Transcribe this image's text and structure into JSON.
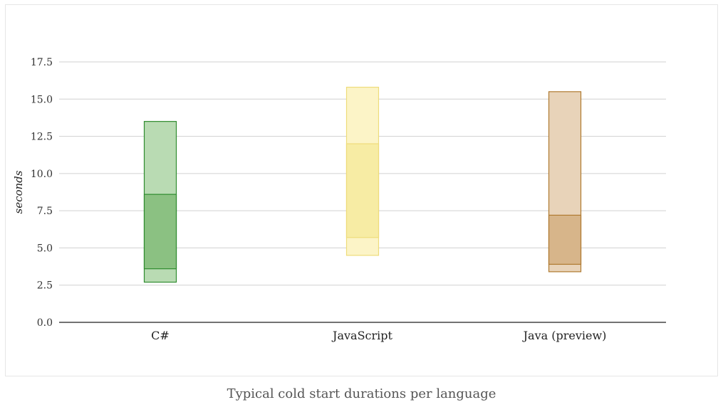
{
  "caption": "Typical cold start durations per language",
  "chart_data": {
    "type": "bar",
    "subtype": "floating-range",
    "title": "",
    "xlabel": "",
    "ylabel": "seconds",
    "ylim": [
      0,
      17.5
    ],
    "yticks": [
      "0.0",
      "2.5",
      "5.0",
      "7.5",
      "10.0",
      "12.5",
      "15.0",
      "17.5"
    ],
    "ytick_values": [
      0,
      2.5,
      5,
      7.5,
      10,
      12.5,
      15,
      17.5
    ],
    "grid": true,
    "categories": [
      "C#",
      "JavaScript",
      "Java (preview)"
    ],
    "series": [
      {
        "values": [
          {
            "min": 2.7,
            "max": 13.5,
            "inner_min": 3.6,
            "inner_max": 8.6
          },
          {
            "min": 4.5,
            "max": 15.8,
            "inner_min": 5.7,
            "inner_max": 12.0
          },
          {
            "min": 3.4,
            "max": 15.5,
            "inner_min": 3.9,
            "inner_max": 7.2
          }
        ]
      }
    ],
    "colors": {
      "C#": {
        "light": "#b9dbb3",
        "dark": "#8bc182",
        "stroke": "#2e8b2e"
      },
      "JavaScript": {
        "light": "#fcf4c7",
        "dark": "#f7eca4",
        "stroke": "#eedc7a"
      },
      "Java (preview)": {
        "light": "#e8d3b9",
        "dark": "#d7b58a",
        "stroke": "#b07a30"
      }
    }
  }
}
